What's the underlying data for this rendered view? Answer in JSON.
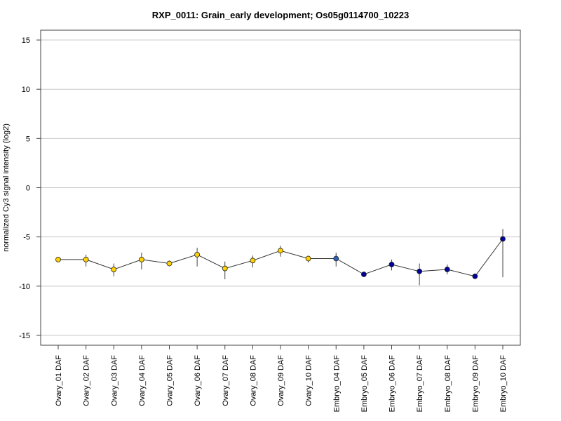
{
  "chart_data": {
    "type": "line",
    "title": "RXP_0011: Grain_early development; Os05g0114700_10223",
    "xlabel": "",
    "ylabel": "normalized Cy3 signal intensity (log2)",
    "ylim": [
      -16,
      16
    ],
    "yticks": [
      -15,
      -10,
      -5,
      0,
      5,
      10,
      15
    ],
    "grid": true,
    "categories": [
      "Ovary_01 DAF",
      "Ovary_02 DAF",
      "Ovary_03 DAF",
      "Ovary_04 DAF",
      "Ovary_05 DAF",
      "Ovary_06 DAF",
      "Ovary_07 DAF",
      "Ovary_08 DAF",
      "Ovary_09 DAF",
      "Ovary_10 DAF",
      "Embryo_04 DAF",
      "Embryo_05 DAF",
      "Embryo_06 DAF",
      "Embryo_07 DAF",
      "Embryo_08 DAF",
      "Embryo_09 DAF",
      "Embryo_10 DAF"
    ],
    "values": [
      -7.3,
      -7.3,
      -8.3,
      -7.3,
      -7.7,
      -6.8,
      -8.2,
      -7.4,
      -6.4,
      -7.2,
      -7.2,
      -8.8,
      -7.8,
      -8.5,
      -8.3,
      -9.0,
      -5.2
    ],
    "err_low": [
      -7.3,
      -8.0,
      -9.0,
      -8.3,
      -7.9,
      -8.0,
      -9.3,
      -8.1,
      -7.0,
      -7.6,
      -8.0,
      -8.8,
      -8.4,
      -9.9,
      -8.8,
      -9.0,
      -9.1
    ],
    "err_high": [
      -7.3,
      -6.8,
      -7.7,
      -6.6,
      -7.4,
      -6.1,
      -7.5,
      -6.9,
      -5.9,
      -6.9,
      -6.6,
      -8.8,
      -7.3,
      -7.7,
      -7.8,
      -9.0,
      -4.2
    ],
    "point_colors": [
      "#ffd200",
      "#ffd200",
      "#ffd200",
      "#ffd200",
      "#ffd200",
      "#ffd200",
      "#ffd200",
      "#ffd200",
      "#ffd200",
      "#ffd200",
      "#2b63b8",
      "#00009a",
      "#00009a",
      "#00009a",
      "#00009a",
      "#00009a",
      "#00009a"
    ],
    "colors": {
      "line": "#333333",
      "grid": "#c8c8c8",
      "errorbar": "#444444"
    }
  }
}
